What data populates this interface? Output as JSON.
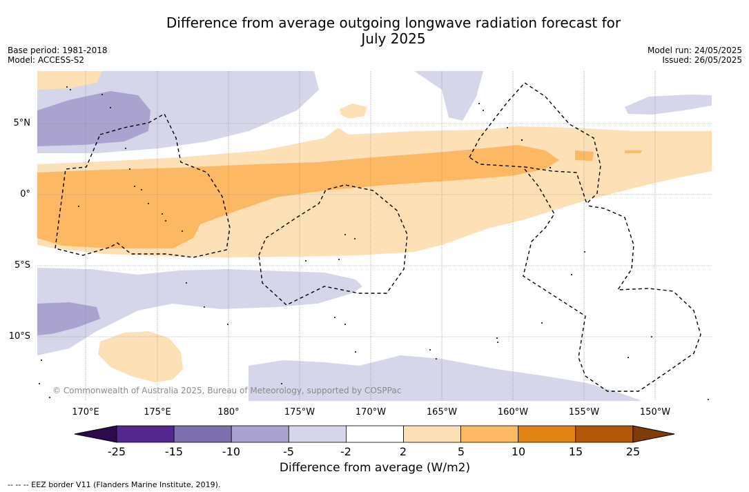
{
  "title": {
    "line1": "Difference from average outgoing longwave radiation forecast for",
    "line2": "July 2025"
  },
  "meta": {
    "base_period": "Base period: 1981-2018",
    "model": "Model: ACCESS-S2",
    "model_run": "Model run: 24/05/2025",
    "issued": "Issued: 26/05/2025"
  },
  "axes": {
    "lon_ticks": [
      "170°E",
      "175°E",
      "180°",
      "175°W",
      "170°W",
      "165°W",
      "160°W",
      "155°W",
      "150°W"
    ],
    "lat_ticks": [
      "5°N",
      "0°",
      "5°S",
      "10°S"
    ]
  },
  "credit": "© Commonwealth of Australia 2025, Bureau of Meteorology, supported by COSPPac",
  "colorbar": {
    "title": "Difference from average (W/m2)",
    "labels": [
      "-25",
      "-15",
      "-10",
      "-5",
      "-2",
      "2",
      "5",
      "10",
      "15",
      "25"
    ],
    "colors": [
      "#54278f",
      "#7d6fb0",
      "#aaa3cf",
      "#d5d6e9",
      "#ffffff",
      "#fde0b6",
      "#fdb863",
      "#e08214",
      "#b35806"
    ],
    "low_color": "#2d0a4e",
    "high_color": "#7f3b08"
  },
  "footer": "--  --  -- EEZ border V11 (Flanders Marine Institute, 2019)."
}
